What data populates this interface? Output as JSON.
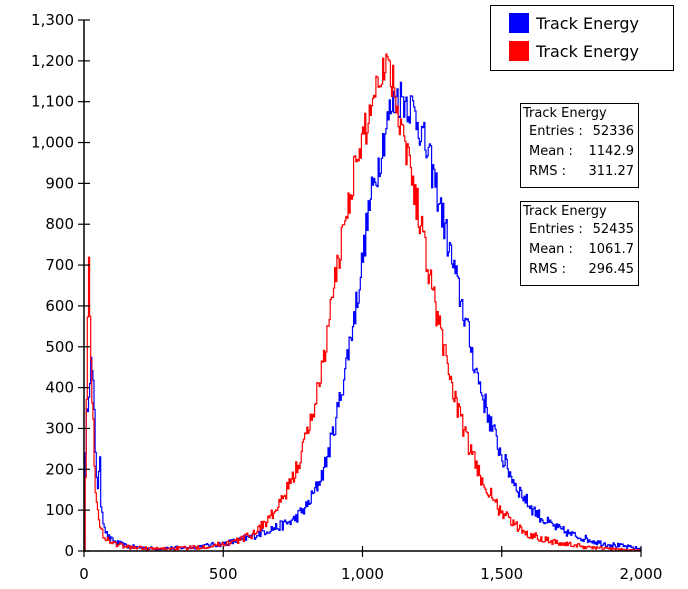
{
  "chart_data": {
    "type": "line",
    "title": "",
    "xlabel": "",
    "ylabel": "",
    "xlim": [
      0,
      2000
    ],
    "ylim": [
      0,
      1300
    ],
    "x_ticks": [
      0,
      500,
      1000,
      1500,
      2000
    ],
    "x_tick_labels": [
      "0",
      "500",
      "1,000",
      "1,500",
      "2,000"
    ],
    "y_ticks": [
      0,
      100,
      200,
      300,
      400,
      500,
      600,
      700,
      800,
      900,
      1000,
      1100,
      1200,
      1300
    ],
    "y_tick_labels": [
      "0",
      "100",
      "200",
      "300",
      "400",
      "500",
      "600",
      "700",
      "800",
      "900",
      "1,000",
      "1,100",
      "1,200",
      "1,300"
    ],
    "grid": false,
    "legend_position": "top-right",
    "series": [
      {
        "name": "Track Energy",
        "color": "#0000ff",
        "x": [
          0,
          5,
          10,
          15,
          20,
          25,
          30,
          35,
          40,
          45,
          50,
          55,
          60,
          70,
          80,
          90,
          100,
          125,
          150,
          200,
          250,
          300,
          350,
          400,
          450,
          500,
          550,
          600,
          650,
          700,
          750,
          800,
          830,
          860,
          890,
          920,
          950,
          980,
          1000,
          1020,
          1040,
          1060,
          1080,
          1100,
          1120,
          1140,
          1160,
          1180,
          1200,
          1220,
          1250,
          1280,
          1310,
          1340,
          1370,
          1400,
          1430,
          1460,
          1500,
          1550,
          1600,
          1650,
          1700,
          1750,
          1800,
          1850,
          1900,
          1950,
          2000
        ],
        "y": [
          0,
          280,
          350,
          400,
          440,
          460,
          420,
          350,
          250,
          180,
          150,
          230,
          120,
          70,
          40,
          30,
          25,
          18,
          12,
          8,
          6,
          7,
          8,
          10,
          14,
          18,
          25,
          35,
          50,
          60,
          75,
          110,
          150,
          200,
          280,
          380,
          500,
          620,
          720,
          830,
          900,
          960,
          1030,
          1080,
          1110,
          1110,
          1100,
          1080,
          1050,
          1000,
          930,
          840,
          740,
          650,
          560,
          460,
          380,
          310,
          230,
          160,
          110,
          75,
          55,
          40,
          30,
          20,
          15,
          10,
          5
        ]
      },
      {
        "name": "Track Energy",
        "color": "#ff0000",
        "x": [
          0,
          5,
          10,
          15,
          20,
          25,
          30,
          35,
          40,
          45,
          50,
          55,
          60,
          70,
          80,
          90,
          100,
          125,
          150,
          200,
          250,
          300,
          350,
          400,
          450,
          500,
          550,
          600,
          650,
          700,
          750,
          780,
          810,
          840,
          870,
          900,
          930,
          960,
          990,
          1020,
          1050,
          1080,
          1100,
          1120,
          1140,
          1160,
          1180,
          1200,
          1230,
          1260,
          1290,
          1320,
          1350,
          1380,
          1410,
          1440,
          1480,
          1520,
          1560,
          1600,
          1650,
          1700,
          1750,
          1800,
          1850,
          1900,
          1950,
          2000
        ],
        "y": [
          0,
          250,
          500,
          700,
          600,
          450,
          350,
          250,
          150,
          100,
          80,
          60,
          50,
          40,
          30,
          25,
          20,
          15,
          10,
          8,
          5,
          6,
          7,
          9,
          12,
          18,
          25,
          40,
          70,
          110,
          180,
          240,
          310,
          400,
          520,
          660,
          790,
          900,
          980,
          1060,
          1150,
          1200,
          1180,
          1100,
          1050,
          980,
          900,
          830,
          720,
          600,
          500,
          410,
          320,
          260,
          200,
          160,
          110,
          80,
          55,
          40,
          30,
          20,
          15,
          10,
          7,
          5,
          3,
          2
        ]
      }
    ],
    "stats_boxes": [
      {
        "title": "Track Energy",
        "rows": [
          {
            "key": "Entries :",
            "value": "52336"
          },
          {
            "key": "Mean :",
            "value": "1142.9"
          },
          {
            "key": "RMS :",
            "value": "311.27"
          }
        ]
      },
      {
        "title": "Track Energy",
        "rows": [
          {
            "key": "Entries :",
            "value": "52435"
          },
          {
            "key": "Mean :",
            "value": "1061.7"
          },
          {
            "key": "RMS :",
            "value": "296.45"
          }
        ]
      }
    ]
  }
}
